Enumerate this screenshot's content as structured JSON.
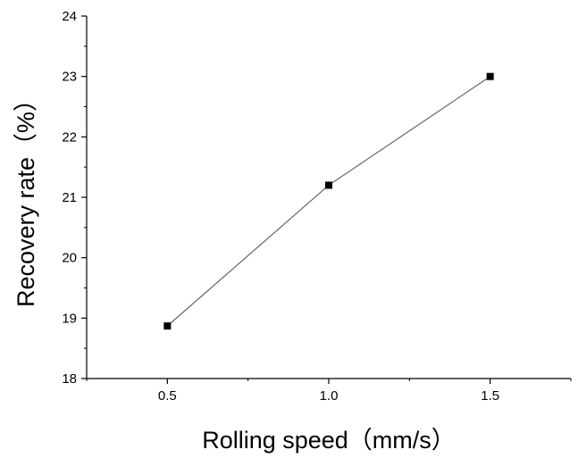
{
  "chart_data": {
    "type": "line",
    "title": "",
    "xlabel": "Rolling speed（mm/s）",
    "ylabel": "Recovery rate（%）",
    "x": [
      0.5,
      1.0,
      1.5
    ],
    "series": [
      {
        "values": [
          18.87,
          21.2,
          23.0
        ]
      }
    ],
    "xlim": [
      0.25,
      1.75
    ],
    "ylim": [
      18,
      24
    ],
    "xticks": [
      "0.5",
      "1.0",
      "1.5"
    ],
    "yticks": [
      "18",
      "19",
      "20",
      "21",
      "22",
      "23",
      "24"
    ],
    "marker": "square",
    "grid": false,
    "line_color": "#666666",
    "marker_color": "#000000"
  }
}
